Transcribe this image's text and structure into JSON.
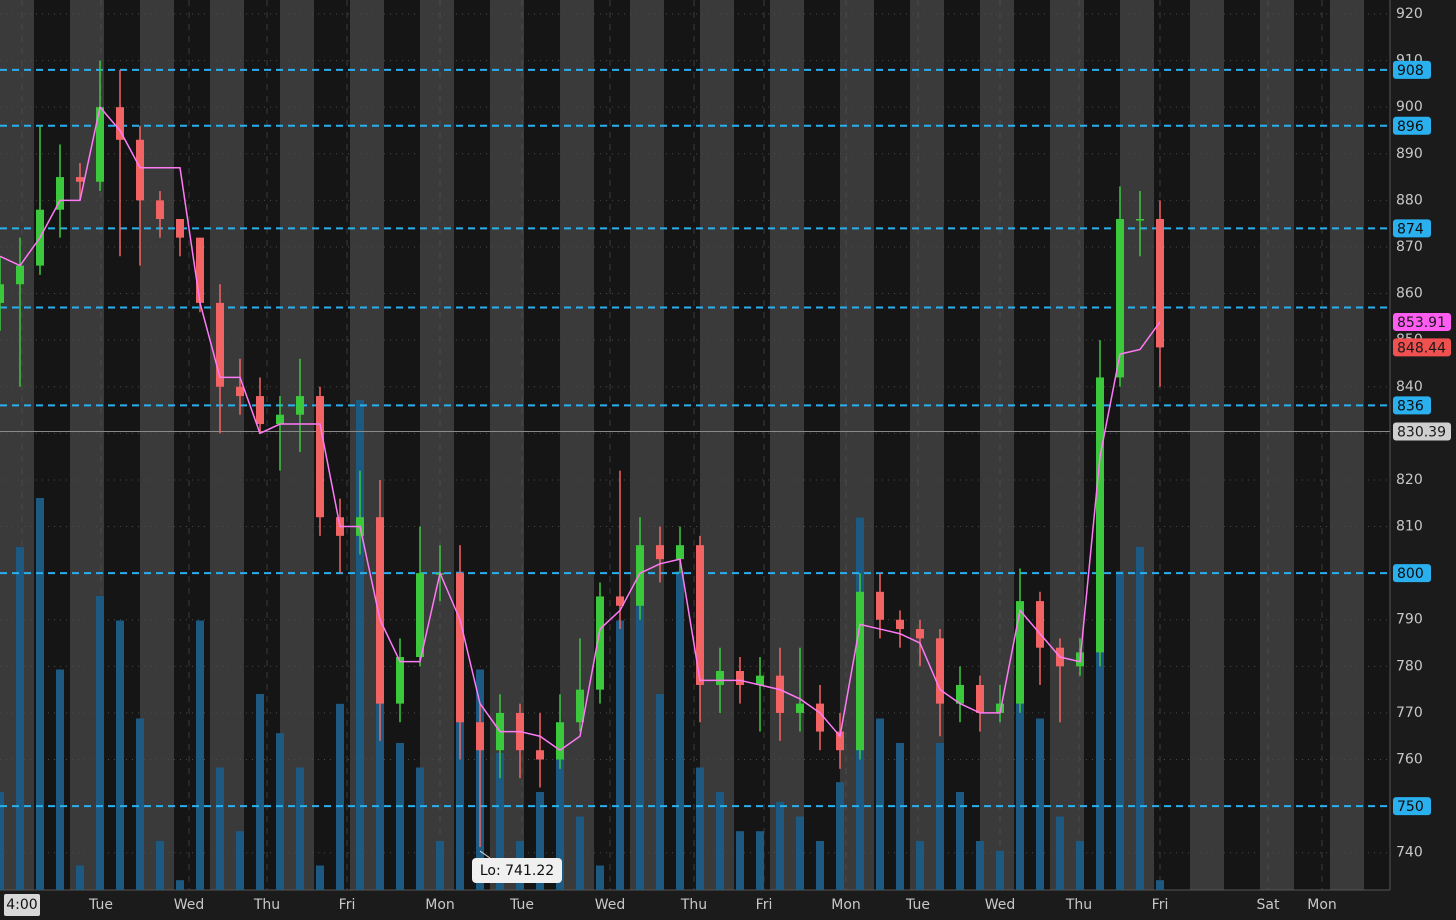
{
  "chart_data": {
    "type": "candlestick",
    "xlim": [
      0,
      139
    ],
    "ylim": [
      732,
      923
    ],
    "yticks": [
      740,
      750,
      760,
      770,
      780,
      790,
      800,
      810,
      820,
      830,
      840,
      850,
      860,
      870,
      880,
      890,
      900,
      910,
      920
    ],
    "xticks": [
      {
        "value": 2.2,
        "label": "4:00"
      },
      {
        "value": 10.1,
        "label": "Tue"
      },
      {
        "value": 18.9,
        "label": "Wed"
      },
      {
        "value": 26.7,
        "label": "Thu"
      },
      {
        "value": 34.7,
        "label": "Fri"
      },
      {
        "value": 44,
        "label": "Mon"
      },
      {
        "value": 52.2,
        "label": "Tue"
      },
      {
        "value": 61,
        "label": "Wed"
      },
      {
        "value": 69.4,
        "label": "Thu"
      },
      {
        "value": 76.4,
        "label": "Fri"
      },
      {
        "value": 84.6,
        "label": "Mon"
      },
      {
        "value": 91.8,
        "label": "Tue"
      },
      {
        "value": 100,
        "label": "Wed"
      },
      {
        "value": 107.9,
        "label": "Thu"
      },
      {
        "value": 116,
        "label": "Fri"
      },
      {
        "value": 126.8,
        "label": "Sat"
      },
      {
        "value": 132.2,
        "label": "Mon"
      }
    ],
    "up_color": "#3cc83c",
    "down_color": "#f26464",
    "candles": {
      "x": [
        0,
        2,
        4,
        6,
        8,
        10,
        12,
        14,
        16,
        18,
        20,
        22,
        24,
        26,
        28,
        30,
        32,
        34,
        36,
        38,
        40,
        42,
        44,
        46,
        48,
        50,
        52,
        54,
        56,
        58,
        60,
        62,
        64,
        66,
        68,
        70,
        72,
        74,
        76,
        78,
        80,
        82,
        84,
        86,
        88,
        90,
        92,
        94,
        96,
        98,
        100,
        102,
        104,
        106,
        108,
        110,
        112,
        114,
        116
      ],
      "open": [
        858,
        862,
        866,
        878,
        885,
        884,
        900,
        893,
        880,
        876,
        872,
        858,
        840,
        838,
        832,
        834,
        838,
        812,
        808,
        812,
        772,
        782,
        800,
        800,
        768,
        762,
        770,
        762,
        760,
        768,
        775,
        795,
        793,
        806,
        803,
        806,
        776,
        779,
        776,
        778,
        770,
        772,
        766,
        762,
        796,
        790,
        788,
        786,
        772,
        776,
        770,
        772,
        794,
        784,
        780,
        783,
        842,
        876,
        876
      ],
      "high": [
        868,
        872,
        896,
        892,
        888,
        910,
        908,
        896,
        882,
        876,
        866,
        862,
        846,
        842,
        838,
        846,
        840,
        816,
        822,
        820,
        786,
        810,
        806,
        806,
        772,
        774,
        772,
        770,
        774,
        786,
        798,
        822,
        812,
        810,
        810,
        808,
        784,
        782,
        782,
        784,
        784,
        776,
        770,
        800,
        800,
        792,
        790,
        788,
        780,
        778,
        776,
        801,
        796,
        786,
        786,
        850,
        883,
        882,
        880
      ],
      "low": [
        852,
        840,
        864,
        872,
        880,
        882,
        868,
        866,
        872,
        868,
        856,
        830,
        834,
        830,
        822,
        826,
        808,
        800,
        804,
        764,
        768,
        780,
        794,
        760,
        741.22,
        756,
        756,
        754,
        758,
        766,
        772,
        788,
        790,
        798,
        800,
        768,
        770,
        772,
        766,
        764,
        766,
        762,
        758,
        760,
        786,
        784,
        780,
        765,
        768,
        766,
        768,
        770,
        776,
        768,
        778,
        780,
        840,
        868,
        840
      ],
      "close": [
        862,
        866,
        878,
        885,
        884,
        900,
        893,
        880,
        876,
        872,
        858,
        840,
        838,
        832,
        834,
        838,
        812,
        808,
        812,
        772,
        782,
        800,
        800,
        768,
        762,
        770,
        762,
        760,
        768,
        775,
        795,
        793,
        806,
        803,
        806,
        776,
        779,
        776,
        778,
        770,
        772,
        766,
        762,
        796,
        790,
        788,
        786,
        772,
        776,
        770,
        772,
        794,
        784,
        780,
        783,
        842,
        876,
        876,
        848.44
      ]
    },
    "ma": {
      "color": "#ff7af5",
      "values": [
        868,
        866,
        872,
        880,
        880,
        900,
        895,
        887,
        887,
        887,
        858,
        842,
        842,
        830,
        832,
        832,
        832,
        810,
        810,
        790,
        781,
        781,
        800,
        790,
        772,
        766,
        766,
        765,
        762,
        765,
        788,
        792,
        800,
        802,
        803,
        777,
        777,
        777,
        776,
        775,
        773,
        770,
        765,
        789,
        788,
        787,
        785,
        775,
        772,
        770,
        770,
        792,
        787,
        782,
        781,
        825,
        847,
        848,
        853.91
      ]
    },
    "volume": {
      "color": "#1d5a82",
      "vlim": [
        0,
        100
      ],
      "values": [
        20,
        70,
        80,
        45,
        5,
        60,
        55,
        35,
        10,
        2,
        55,
        25,
        12,
        40,
        32,
        25,
        5,
        38,
        100,
        60,
        30,
        25,
        10,
        65,
        45,
        28,
        10,
        20,
        30,
        15,
        5,
        55,
        60,
        40,
        65,
        25,
        20,
        12,
        12,
        18,
        15,
        10,
        22,
        76,
        35,
        30,
        10,
        30,
        20,
        10,
        8,
        40,
        35,
        15,
        10,
        70,
        65,
        70,
        2
      ]
    },
    "level_color": "#2ab0ee",
    "levels": [
      908,
      896,
      874,
      836,
      800,
      750
    ],
    "unlabeled_levels": [
      857
    ],
    "ma_last": 853.91,
    "last": 848.44,
    "crosshair": 830.39,
    "low_marker": {
      "x": 48,
      "value": 741.22,
      "label": "Lo: 741.22"
    }
  }
}
